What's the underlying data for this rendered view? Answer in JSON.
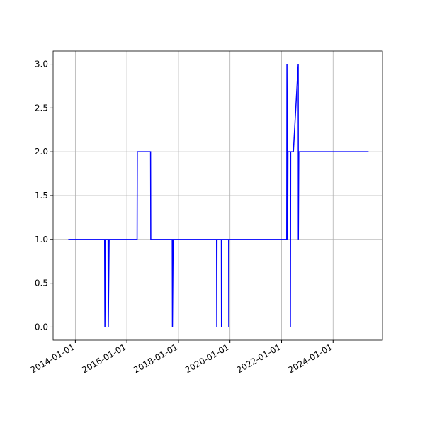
{
  "chart_data": {
    "type": "line",
    "x": [
      "2013-09-23",
      "2015-02-20",
      "2015-02-24",
      "2015-03-03",
      "2015-04-10",
      "2015-04-13",
      "2015-04-25",
      "2016-05-25",
      "2016-05-28",
      "2016-12-02",
      "2016-12-05",
      "2017-10-05",
      "2017-10-08",
      "2017-10-18",
      "2019-06-25",
      "2019-06-28",
      "2019-07-01",
      "2019-09-01",
      "2019-09-03",
      "2019-09-06",
      "2019-12-13",
      "2019-12-15",
      "2019-12-18",
      "2022-03-15",
      "2022-03-18",
      "2022-03-28",
      "2022-04-01",
      "2022-05-04",
      "2022-05-06",
      "2022-05-10",
      "2022-06-17",
      "2022-08-25",
      "2022-08-27",
      "2022-09-02",
      "2025-05-18"
    ],
    "series": [
      {
        "color": "#0000ff",
        "values": [
          1,
          1,
          0,
          1,
          1,
          0,
          1,
          1,
          2,
          2,
          1,
          1,
          0,
          1,
          1,
          0,
          1,
          1,
          0,
          1,
          1,
          0,
          1,
          1,
          3,
          1,
          2,
          2,
          0,
          2,
          2,
          3,
          1,
          2,
          2
        ]
      }
    ],
    "xlim": [
      "2013-02-20",
      "2025-12-01"
    ],
    "xticks": [
      "2014-01-01",
      "2016-01-01",
      "2018-01-01",
      "2020-01-01",
      "2022-01-01",
      "2024-01-01"
    ],
    "ylim": [
      -0.15,
      3.15
    ],
    "yticks": [
      {
        "value": 0,
        "label": "0.0"
      },
      {
        "value": 0.5,
        "label": "0.5"
      },
      {
        "value": 1,
        "label": "1.0"
      },
      {
        "value": 1.5,
        "label": "1.5"
      },
      {
        "value": 2,
        "label": "2.0"
      },
      {
        "value": 2.5,
        "label": "2.5"
      },
      {
        "value": 3,
        "label": "3.0"
      }
    ],
    "grid": true
  }
}
